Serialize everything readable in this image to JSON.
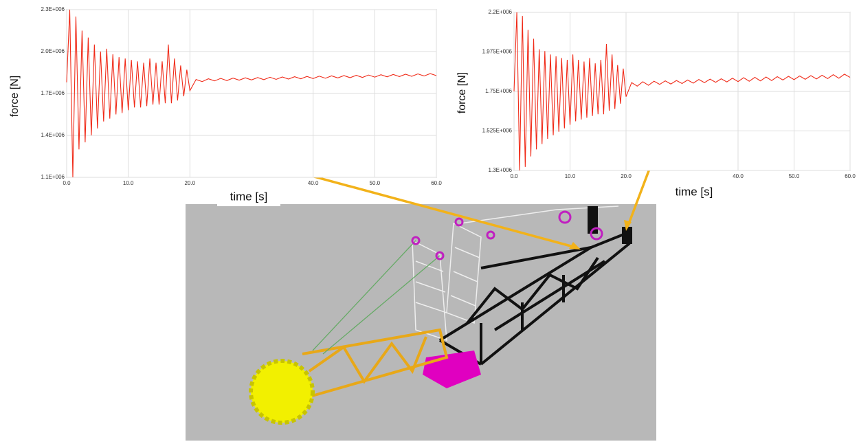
{
  "chart_data": [
    {
      "type": "line",
      "y_label": "force [N]",
      "x_label": "time [s]",
      "color": "#f02a18",
      "grid": true,
      "xlim": [
        0,
        60
      ],
      "ylim": [
        1100000,
        2300000
      ],
      "xticks": [
        {
          "value": 0,
          "label": "0.0"
        },
        {
          "value": 10,
          "label": "10.0"
        },
        {
          "value": 20,
          "label": "20.0"
        },
        {
          "value": 40,
          "label": "40.0"
        },
        {
          "value": 50,
          "label": "50.0"
        },
        {
          "value": 60,
          "label": "60.0"
        }
      ],
      "yticks": [
        {
          "value": 1100000,
          "label": "1.1E+006"
        },
        {
          "value": 1400000,
          "label": "1.4E+006"
        },
        {
          "value": 1700000,
          "label": "1.7E+006"
        },
        {
          "value": 2000000,
          "label": "2.0E+006"
        },
        {
          "value": 2300000,
          "label": "2.3E+006"
        }
      ],
      "x": [
        0,
        0.5,
        1,
        1.5,
        2,
        2.5,
        3,
        3.5,
        4,
        4.5,
        5,
        5.5,
        6,
        6.5,
        7,
        7.5,
        8,
        8.5,
        9,
        9.5,
        10,
        10.5,
        11,
        11.5,
        12,
        12.5,
        13,
        13.5,
        14,
        14.5,
        15,
        15.5,
        16,
        16.5,
        17,
        17.5,
        18,
        18.5,
        19,
        19.5,
        20,
        21,
        22,
        23,
        24,
        25,
        26,
        27,
        28,
        29,
        30,
        31,
        32,
        33,
        34,
        35,
        36,
        37,
        38,
        39,
        40,
        41,
        42,
        43,
        44,
        45,
        46,
        47,
        48,
        49,
        50,
        51,
        52,
        53,
        54,
        55,
        56,
        57,
        58,
        59,
        60
      ],
      "values": [
        1780000,
        2300000,
        1100000,
        2250000,
        1300000,
        2150000,
        1350000,
        2100000,
        1400000,
        2050000,
        1450000,
        2000000,
        1500000,
        2020000,
        1520000,
        1980000,
        1550000,
        1960000,
        1560000,
        1950000,
        1580000,
        1940000,
        1600000,
        1930000,
        1600000,
        1920000,
        1610000,
        1950000,
        1620000,
        1920000,
        1620000,
        1930000,
        1630000,
        2050000,
        1630000,
        1950000,
        1650000,
        1900000,
        1680000,
        1870000,
        1720000,
        1800000,
        1785000,
        1805000,
        1790000,
        1808000,
        1792000,
        1810000,
        1795000,
        1812000,
        1797000,
        1814000,
        1799000,
        1816000,
        1801000,
        1818000,
        1803000,
        1820000,
        1805000,
        1822000,
        1807000,
        1824000,
        1809000,
        1826000,
        1811000,
        1828000,
        1813000,
        1830000,
        1815000,
        1832000,
        1817000,
        1834000,
        1819000,
        1836000,
        1821000,
        1838000,
        1823000,
        1840000,
        1825000,
        1842000,
        1828000
      ]
    },
    {
      "type": "line",
      "y_label": "force [N]",
      "x_label": "time [s]",
      "color": "#f02a18",
      "grid": true,
      "xlim": [
        0,
        60
      ],
      "ylim": [
        1300000,
        2200000
      ],
      "xticks": [
        {
          "value": 0,
          "label": "0.0"
        },
        {
          "value": 10,
          "label": "10.0"
        },
        {
          "value": 20,
          "label": "20.0"
        },
        {
          "value": 40,
          "label": "40.0"
        },
        {
          "value": 50,
          "label": "50.0"
        },
        {
          "value": 60,
          "label": "60.0"
        }
      ],
      "yticks": [
        {
          "value": 1300000,
          "label": "1.3E+006"
        },
        {
          "value": 1525000,
          "label": "1.525E+006"
        },
        {
          "value": 1750000,
          "label": "1.75E+006"
        },
        {
          "value": 1975000,
          "label": "1.975E+006"
        },
        {
          "value": 2200000,
          "label": "2.2E+006"
        }
      ],
      "x": [
        0,
        0.5,
        1,
        1.5,
        2,
        2.5,
        3,
        3.5,
        4,
        4.5,
        5,
        5.5,
        6,
        6.5,
        7,
        7.5,
        8,
        8.5,
        9,
        9.5,
        10,
        10.5,
        11,
        11.5,
        12,
        12.5,
        13,
        13.5,
        14,
        14.5,
        15,
        15.5,
        16,
        16.5,
        17,
        17.5,
        18,
        18.5,
        19,
        19.5,
        20,
        21,
        22,
        23,
        24,
        25,
        26,
        27,
        28,
        29,
        30,
        31,
        32,
        33,
        34,
        35,
        36,
        37,
        38,
        39,
        40,
        41,
        42,
        43,
        44,
        45,
        46,
        47,
        48,
        49,
        50,
        51,
        52,
        53,
        54,
        55,
        56,
        57,
        58,
        59,
        60
      ],
      "values": [
        1750000,
        2200000,
        1300000,
        2180000,
        1320000,
        2100000,
        1380000,
        2050000,
        1420000,
        1990000,
        1450000,
        1980000,
        1480000,
        1960000,
        1500000,
        1950000,
        1520000,
        1940000,
        1540000,
        1930000,
        1560000,
        1960000,
        1580000,
        1930000,
        1590000,
        1920000,
        1600000,
        1940000,
        1610000,
        1910000,
        1620000,
        1930000,
        1620000,
        2020000,
        1640000,
        1960000,
        1650000,
        1900000,
        1680000,
        1880000,
        1720000,
        1800000,
        1780000,
        1805000,
        1785000,
        1808000,
        1790000,
        1810000,
        1792000,
        1812000,
        1795000,
        1815000,
        1797000,
        1818000,
        1800000,
        1820000,
        1802000,
        1822000,
        1804000,
        1825000,
        1806000,
        1828000,
        1808000,
        1830000,
        1810000,
        1832000,
        1812000,
        1834000,
        1815000,
        1836000,
        1817000,
        1838000,
        1819000,
        1840000,
        1821000,
        1842000,
        1823000,
        1845000,
        1825000,
        1848000,
        1830000
      ]
    }
  ]
}
